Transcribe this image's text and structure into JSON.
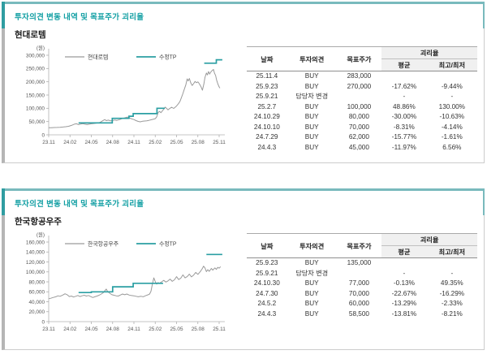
{
  "accent": {
    "teal_dark": "#2f9da1",
    "teal_light": "#79babd",
    "teal_text": "#14a0a4",
    "line_gray": "#9a9a9a",
    "line_teal": "#2b9fa3",
    "disparity_header_bg": "#f0f0f0"
  },
  "panels": [
    {
      "section_title": "투자의견 변동 내역 및 목표주가 괴리율",
      "stock_name": "현대로템",
      "table": {
        "col_headers": {
          "date": "날짜",
          "opinion": "투자의견",
          "target_price": "목표주가",
          "disparity": "괴리율",
          "avg": "평균",
          "hilo": "최고/최저"
        },
        "rows": [
          {
            "date": "25.11.4",
            "opinion": "BUY",
            "target_price": "283,000",
            "avg": "",
            "hilo": ""
          },
          {
            "date": "25.9.23",
            "opinion": "BUY",
            "target_price": "270,000",
            "avg": "-17.62%",
            "hilo": "-9.44%"
          },
          {
            "date": "25.9.21",
            "opinion": "담당자 변경",
            "target_price": "",
            "avg": "-",
            "hilo": "-"
          },
          {
            "date": "25.2.7",
            "opinion": "BUY",
            "target_price": "100,000",
            "avg": "48.86%",
            "hilo": "130.00%"
          },
          {
            "date": "24.10.29",
            "opinion": "BUY",
            "target_price": "80,000",
            "avg": "-30.00%",
            "hilo": "-10.63%"
          },
          {
            "date": "24.10.10",
            "opinion": "BUY",
            "target_price": "70,000",
            "avg": "-8.31%",
            "hilo": "-4.14%"
          },
          {
            "date": "24.7.29",
            "opinion": "BUY",
            "target_price": "62,000",
            "avg": "-15.77%",
            "hilo": "-1.61%"
          },
          {
            "date": "24.4.3",
            "opinion": "BUY",
            "target_price": "45,000",
            "avg": "-11.97%",
            "hilo": "6.56%"
          }
        ]
      }
    },
    {
      "section_title": "투자의견 변동 내역 및 목표주가 괴리율",
      "stock_name": "한국항공우주",
      "table": {
        "col_headers": {
          "date": "날짜",
          "opinion": "투자의견",
          "target_price": "목표주가",
          "disparity": "괴리율",
          "avg": "평균",
          "hilo": "최고/최저"
        },
        "rows": [
          {
            "date": "25.9.23",
            "opinion": "BUY",
            "target_price": "135,000",
            "avg": "",
            "hilo": ""
          },
          {
            "date": "25.9.21",
            "opinion": "담당자 변경",
            "target_price": "",
            "avg": "-",
            "hilo": "-"
          },
          {
            "date": "24.10.30",
            "opinion": "BUY",
            "target_price": "77,000",
            "avg": "-0.13%",
            "hilo": "49.35%"
          },
          {
            "date": "24.7.30",
            "opinion": "BUY",
            "target_price": "70,000",
            "avg": "-22.67%",
            "hilo": "-16.29%"
          },
          {
            "date": "24.5.2",
            "opinion": "BUY",
            "target_price": "60,000",
            "avg": "-13.29%",
            "hilo": "-2.33%"
          },
          {
            "date": "24.4.3",
            "opinion": "BUY",
            "target_price": "58,500",
            "avg": "-13.81%",
            "hilo": "-8.21%"
          }
        ]
      }
    }
  ],
  "chart_data": [
    {
      "type": "line",
      "unit_label": "(원)",
      "ylim": [
        0,
        300000
      ],
      "y_tick_labels": [
        "0",
        "50,000",
        "100,000",
        "150,000",
        "200,000",
        "250,000",
        "300,000"
      ],
      "x_tick_months": [
        0,
        3,
        6,
        9,
        12,
        15,
        18,
        21,
        24
      ],
      "x_tick_labels": [
        "23.11",
        "24.02",
        "24.05",
        "24.08",
        "24.11",
        "25.02",
        "25.05",
        "25.08",
        "25.11"
      ],
      "x_axis_max_month": 24,
      "legend": [
        {
          "label": "현대로템",
          "color": "#9a9a9a"
        },
        {
          "label": "수정TP",
          "color": "#2b9fa3"
        }
      ],
      "price_series": [
        [
          0,
          27000
        ],
        [
          0.4,
          26500
        ],
        [
          0.8,
          27500
        ],
        [
          1.2,
          28000
        ],
        [
          1.6,
          28500
        ],
        [
          2,
          29500
        ],
        [
          2.4,
          30500
        ],
        [
          2.8,
          32000
        ],
        [
          3.2,
          35500
        ],
        [
          3.6,
          40000
        ],
        [
          3.9,
          41500
        ],
        [
          4.2,
          38500
        ],
        [
          4.5,
          40500
        ],
        [
          4.8,
          42000
        ],
        [
          5.1,
          40000
        ],
        [
          5.4,
          38500
        ],
        [
          5.7,
          40000
        ],
        [
          6,
          41500
        ],
        [
          6.3,
          42500
        ],
        [
          6.6,
          43500
        ],
        [
          7,
          45000
        ],
        [
          7.3,
          48000
        ],
        [
          7.6,
          53000
        ],
        [
          7.9,
          57500
        ],
        [
          8.1,
          53500
        ],
        [
          8.4,
          55500
        ],
        [
          8.7,
          52500
        ],
        [
          9,
          54000
        ],
        [
          9.3,
          56000
        ],
        [
          9.6,
          54500
        ],
        [
          10,
          57500
        ],
        [
          10.3,
          60500
        ],
        [
          10.6,
          63500
        ],
        [
          10.9,
          65500
        ],
        [
          11.1,
          67000
        ],
        [
          11.4,
          63000
        ],
        [
          11.7,
          60000
        ],
        [
          12,
          57500
        ],
        [
          12.3,
          53500
        ],
        [
          12.6,
          50500
        ],
        [
          12.9,
          49000
        ],
        [
          13.2,
          51000
        ],
        [
          13.5,
          52000
        ],
        [
          13.8,
          53000
        ],
        [
          14.1,
          54500
        ],
        [
          14.4,
          56500
        ],
        [
          14.7,
          58500
        ],
        [
          15,
          61000
        ],
        [
          15.2,
          67500
        ],
        [
          15.4,
          84000
        ],
        [
          15.6,
          88500
        ],
        [
          15.8,
          83500
        ],
        [
          16,
          90000
        ],
        [
          16.2,
          97000
        ],
        [
          16.4,
          104500
        ],
        [
          16.6,
          99500
        ],
        [
          16.8,
          94000
        ],
        [
          17,
          98500
        ],
        [
          17.3,
          104000
        ],
        [
          17.6,
          99500
        ],
        [
          17.9,
          106000
        ],
        [
          18.1,
          112000
        ],
        [
          18.3,
          118500
        ],
        [
          18.5,
          127000
        ],
        [
          18.7,
          141000
        ],
        [
          18.9,
          156000
        ],
        [
          19.1,
          172000
        ],
        [
          19.3,
          188000
        ],
        [
          19.5,
          211000
        ],
        [
          19.65,
          203000
        ],
        [
          19.8,
          212500
        ],
        [
          20,
          196000
        ],
        [
          20.2,
          186000
        ],
        [
          20.4,
          193000
        ],
        [
          20.6,
          201000
        ],
        [
          20.8,
          196500
        ],
        [
          21,
          199500
        ],
        [
          21.2,
          193000
        ],
        [
          21.45,
          181000
        ],
        [
          21.65,
          168500
        ],
        [
          21.85,
          192000
        ],
        [
          22,
          216000
        ],
        [
          22.2,
          233000
        ],
        [
          22.35,
          226000
        ],
        [
          22.5,
          238500
        ],
        [
          22.65,
          229000
        ],
        [
          22.8,
          236000
        ],
        [
          23,
          242000
        ],
        [
          23.2,
          246500
        ],
        [
          23.35,
          232000
        ],
        [
          23.5,
          224000
        ],
        [
          23.65,
          206000
        ],
        [
          23.8,
          193000
        ],
        [
          23.95,
          183000
        ],
        [
          24.1,
          176000
        ]
      ],
      "target_price_step_groups": [
        [
          [
            4.2,
            8.95,
            45000
          ],
          [
            8.95,
            11.3,
            62000
          ],
          [
            11.3,
            11.9,
            70000
          ],
          [
            11.9,
            15.25,
            80000
          ],
          [
            15.25,
            16.35,
            100000
          ]
        ],
        [
          [
            21.9,
            23.6,
            270000
          ],
          [
            23.6,
            24.45,
            283000
          ]
        ]
      ]
    },
    {
      "type": "line",
      "unit_label": "(원)",
      "ylim": [
        0,
        160000
      ],
      "y_tick_labels": [
        "0",
        "20,000",
        "40,000",
        "60,000",
        "80,000",
        "100,000",
        "120,000",
        "140,000",
        "160,000"
      ],
      "x_tick_months": [
        0,
        3,
        6,
        9,
        12,
        15,
        18,
        21,
        24
      ],
      "x_tick_labels": [
        "23.11",
        "24.02",
        "24.05",
        "24.08",
        "24.11",
        "25.02",
        "25.05",
        "25.08",
        "25.11"
      ],
      "x_axis_max_month": 24,
      "legend": [
        {
          "label": "한국항공우주",
          "color": "#9a9a9a"
        },
        {
          "label": "수정TP",
          "color": "#2b9fa3"
        }
      ],
      "price_series": [
        [
          0,
          46000
        ],
        [
          0.3,
          47000
        ],
        [
          0.6,
          48500
        ],
        [
          1,
          50000
        ],
        [
          1.3,
          52000
        ],
        [
          1.6,
          51000
        ],
        [
          2,
          53500
        ],
        [
          2.3,
          56000
        ],
        [
          2.6,
          54000
        ],
        [
          2.9,
          50500
        ],
        [
          3.2,
          51500
        ],
        [
          3.5,
          49500
        ],
        [
          3.8,
          51000
        ],
        [
          4.1,
          52500
        ],
        [
          4.4,
          50500
        ],
        [
          4.7,
          52000
        ],
        [
          5,
          53000
        ],
        [
          5.3,
          51500
        ],
        [
          5.6,
          52500
        ],
        [
          5.9,
          50500
        ],
        [
          6.2,
          48500
        ],
        [
          6.5,
          50000
        ],
        [
          6.8,
          51500
        ],
        [
          7.1,
          53000
        ],
        [
          7.4,
          55500
        ],
        [
          7.7,
          58500
        ],
        [
          7.9,
          62000
        ],
        [
          8.1,
          65500
        ],
        [
          8.3,
          60500
        ],
        [
          8.6,
          57000
        ],
        [
          8.9,
          54000
        ],
        [
          9.2,
          53000
        ],
        [
          9.5,
          52000
        ],
        [
          9.8,
          51500
        ],
        [
          10.1,
          53500
        ],
        [
          10.4,
          55500
        ],
        [
          10.7,
          54000
        ],
        [
          11,
          55500
        ],
        [
          11.3,
          53500
        ],
        [
          11.6,
          52500
        ],
        [
          12,
          52000
        ],
        [
          12.3,
          51000
        ],
        [
          12.6,
          50000
        ],
        [
          13,
          51000
        ],
        [
          13.3,
          50000
        ],
        [
          13.6,
          52000
        ],
        [
          14,
          54000
        ],
        [
          14.2,
          55500
        ],
        [
          14.4,
          61000
        ],
        [
          14.6,
          76000
        ],
        [
          14.8,
          88000
        ],
        [
          15,
          80500
        ],
        [
          15.2,
          75500
        ],
        [
          15.4,
          78500
        ],
        [
          15.6,
          77000
        ],
        [
          15.9,
          80000
        ],
        [
          16.2,
          83000
        ],
        [
          16.5,
          79500
        ],
        [
          16.8,
          82000
        ],
        [
          17.1,
          85500
        ],
        [
          17.4,
          81000
        ],
        [
          17.7,
          84000
        ],
        [
          18,
          90500
        ],
        [
          18.3,
          84500
        ],
        [
          18.6,
          87500
        ],
        [
          18.9,
          94000
        ],
        [
          19.2,
          88000
        ],
        [
          19.5,
          90500
        ],
        [
          19.8,
          95500
        ],
        [
          20.1,
          90000
        ],
        [
          20.4,
          93500
        ],
        [
          20.7,
          99000
        ],
        [
          21,
          95000
        ],
        [
          21.3,
          100000
        ],
        [
          21.6,
          106000
        ],
        [
          21.8,
          111500
        ],
        [
          22,
          108000
        ],
        [
          22.2,
          100500
        ],
        [
          22.4,
          104500
        ],
        [
          22.6,
          101000
        ],
        [
          22.9,
          107000
        ],
        [
          23.1,
          103500
        ],
        [
          23.4,
          108000
        ],
        [
          23.6,
          105000
        ],
        [
          23.8,
          109000
        ],
        [
          24,
          107500
        ],
        [
          24.2,
          110500
        ]
      ],
      "target_price_step_groups": [
        [
          [
            4.2,
            6,
            58500
          ],
          [
            6,
            9,
            60000
          ],
          [
            9,
            11.9,
            70000
          ],
          [
            11.9,
            16.1,
            77000
          ]
        ],
        [
          [
            22.2,
            24.45,
            135000
          ]
        ]
      ]
    }
  ]
}
